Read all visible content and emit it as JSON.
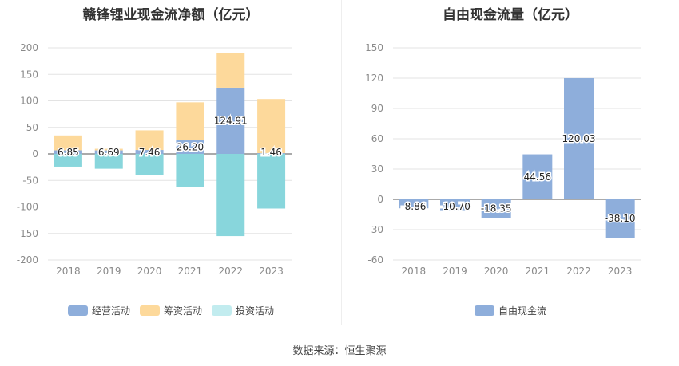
{
  "source_text": "数据来源：恒生聚源",
  "chart_data": [
    {
      "type": "bar",
      "stacked": true,
      "title": "赣锋锂业现金流净额（亿元）",
      "categories": [
        "2018",
        "2019",
        "2020",
        "2021",
        "2022",
        "2023"
      ],
      "ylim": [
        -200,
        200
      ],
      "yticks": [
        200,
        150,
        100,
        50,
        0,
        -50,
        -100,
        -150,
        -200
      ],
      "grid": true,
      "legend_position": "bottom",
      "series": [
        {
          "name": "经营活动",
          "color": "#8eaedb",
          "values": [
            6.85,
            6.69,
            7.46,
            26.2,
            124.91,
            1.46
          ],
          "labels": [
            "6.85",
            "6.69",
            "7.46",
            "26.20",
            "124.91",
            "1.46"
          ]
        },
        {
          "name": "筹资活动",
          "color": "#fdd99b",
          "values": [
            28,
            3,
            37,
            71,
            65,
            102
          ]
        },
        {
          "name": "投资活动",
          "color": "#88d6dc",
          "legend_color": "#c2ecef",
          "values": [
            -24,
            -28,
            -40,
            -62,
            -155,
            -103
          ]
        }
      ]
    },
    {
      "type": "bar",
      "title": "自由现金流量（亿元）",
      "categories": [
        "2018",
        "2019",
        "2020",
        "2021",
        "2022",
        "2023"
      ],
      "ylim": [
        -60,
        150
      ],
      "yticks": [
        150,
        120,
        90,
        60,
        30,
        0,
        -30,
        -60
      ],
      "grid": true,
      "legend_position": "bottom",
      "series": [
        {
          "name": "自由现金流",
          "color": "#8eaedb",
          "values": [
            -8.86,
            -10.7,
            -18.35,
            44.56,
            120.03,
            -38.1
          ],
          "labels": [
            "-8.86",
            "-10.70",
            "-18.35",
            "44.56",
            "120.03",
            "-38.10"
          ]
        }
      ]
    }
  ]
}
